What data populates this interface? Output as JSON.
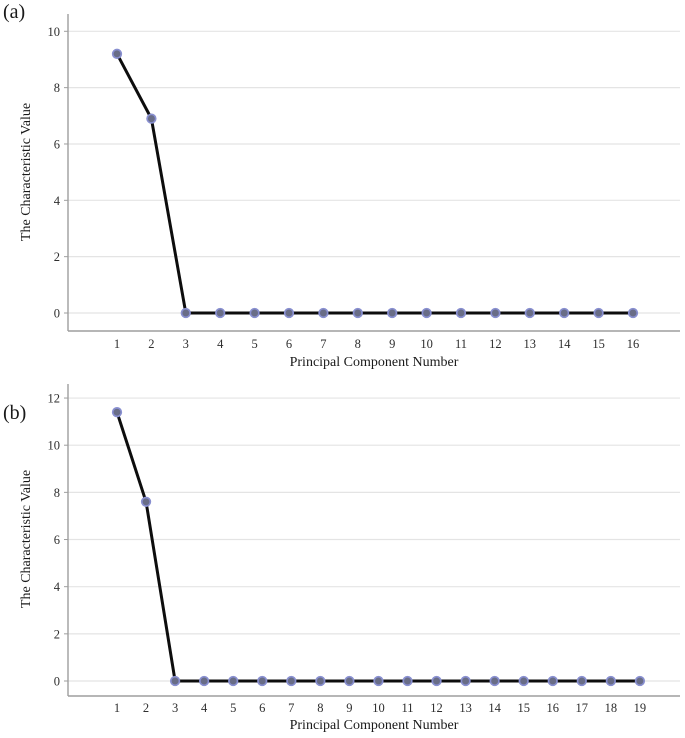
{
  "figure": {
    "background": "#ffffff",
    "panel_labels": [
      "(a)",
      "(b)"
    ]
  },
  "chart_data": [
    {
      "type": "line",
      "title": "",
      "xlabel": "Principal Component Number",
      "ylabel": "The Characteristic Value",
      "x": [
        1,
        2,
        3,
        4,
        5,
        6,
        7,
        8,
        9,
        10,
        11,
        12,
        13,
        14,
        15,
        16
      ],
      "values": [
        9.2,
        6.9,
        0,
        0,
        0,
        0,
        0,
        0,
        0,
        0,
        0,
        0,
        0,
        0,
        0,
        0
      ],
      "xticks": [
        "1",
        "2",
        "3",
        "4",
        "5",
        "6",
        "7",
        "8",
        "9",
        "10",
        "11",
        "12",
        "13",
        "14",
        "15",
        "16"
      ],
      "yticks": [
        0,
        2,
        4,
        6,
        8,
        10
      ],
      "ylim": [
        -0.65,
        10.6
      ],
      "grid": true,
      "legend": "none",
      "colors": {
        "line": "#0d0d0d",
        "marker_fill": "#696d87",
        "marker_ring": "#888fd0",
        "grid": "#e4e4e4",
        "spine": "#9e9e9e",
        "text": "#2e2e2e"
      }
    },
    {
      "type": "line",
      "title": "",
      "xlabel": "Principal Component Number",
      "ylabel": "The Characteristic Value",
      "x": [
        1,
        2,
        3,
        4,
        5,
        6,
        7,
        8,
        9,
        10,
        11,
        12,
        13,
        14,
        15,
        16,
        17,
        18,
        19
      ],
      "values": [
        11.4,
        7.6,
        0,
        0,
        0,
        0,
        0,
        0,
        0,
        0,
        0,
        0,
        0,
        0,
        0,
        0,
        0,
        0,
        0
      ],
      "xticks": [
        "1",
        "2",
        "3",
        "4",
        "5",
        "6",
        "7",
        "8",
        "9",
        "10",
        "11",
        "12",
        "13",
        "14",
        "15",
        "16",
        "17",
        "18",
        "19"
      ],
      "yticks": [
        0,
        2,
        4,
        6,
        8,
        10,
        12
      ],
      "ylim": [
        -0.65,
        12.6
      ],
      "grid": true,
      "legend": "none",
      "colors": {
        "line": "#0d0d0d",
        "marker_fill": "#696d87",
        "marker_ring": "#888fd0",
        "grid": "#e4e4e4",
        "spine": "#9e9e9e",
        "text": "#2e2e2e"
      }
    }
  ]
}
